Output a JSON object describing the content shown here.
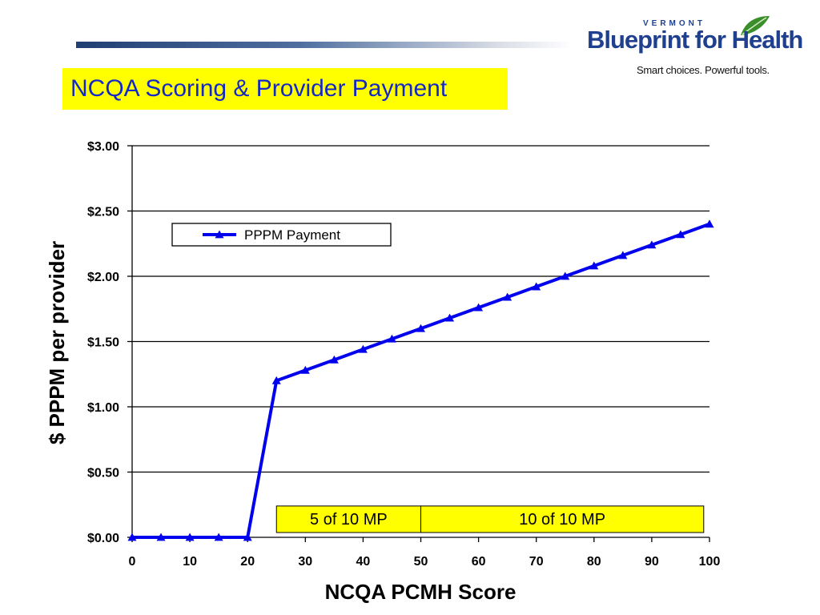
{
  "logo": {
    "state": "VERMONT",
    "name": "Blueprint for Health",
    "tagline": "Smart choices. Powerful tools.",
    "colors": {
      "text": "#1f3f8f",
      "leaf": "#3a8f2a"
    }
  },
  "slide": {
    "title": "NCQA Scoring & Provider Payment",
    "title_bg": "#ffff00",
    "title_color": "#1428c8"
  },
  "chart_data": {
    "type": "line",
    "title": "",
    "xlabel": "NCQA PCMH Score",
    "ylabel": "$ PPPM per provider",
    "xlim": [
      0,
      100
    ],
    "ylim": [
      0,
      3
    ],
    "x_ticks": [
      "0",
      "10",
      "20",
      "30",
      "40",
      "50",
      "60",
      "70",
      "80",
      "90",
      "100"
    ],
    "y_ticks": [
      "$0.00",
      "$0.50",
      "$1.00",
      "$1.50",
      "$2.00",
      "$2.50",
      "$3.00"
    ],
    "grid": "horizontal",
    "legend": "top-left",
    "series": [
      {
        "name": "PPPM Payment",
        "color": "#0000ee",
        "marker": "triangle",
        "x": [
          0,
          5,
          10,
          15,
          20,
          25,
          30,
          35,
          40,
          45,
          50,
          55,
          60,
          65,
          70,
          75,
          80,
          85,
          90,
          95,
          100
        ],
        "y": [
          0,
          0,
          0,
          0,
          0,
          1.2,
          1.28,
          1.36,
          1.44,
          1.52,
          1.6,
          1.68,
          1.76,
          1.84,
          1.92,
          2.0,
          2.08,
          2.16,
          2.24,
          2.32,
          2.4
        ]
      }
    ],
    "annotations": [
      {
        "label": "5 of 10 MP",
        "x_start": 25,
        "x_end": 50,
        "y_top": 0.24
      },
      {
        "label": "10 of 10 MP",
        "x_start": 50,
        "x_end": 99,
        "y_top": 0.24
      }
    ],
    "annotation_bg": "#ffff00"
  }
}
